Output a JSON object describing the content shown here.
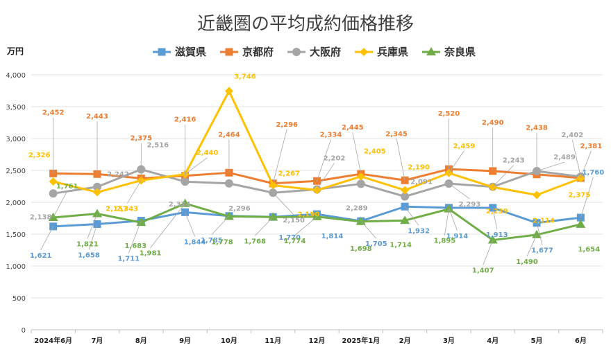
{
  "chart_data": {
    "type": "line",
    "title": "近畿圏の平均成約価格推移",
    "ylabel": "万円",
    "ylim": [
      0,
      4000
    ],
    "yticks": [
      0,
      500,
      1000,
      1500,
      2000,
      2500,
      3000,
      3500,
      4000
    ],
    "ytick_labels": [
      "0",
      "500",
      "1,000",
      "1,500",
      "2,000",
      "2,500",
      "3,000",
      "3,500",
      "4,000"
    ],
    "categories": [
      "2024年6月",
      "7月",
      "8月",
      "9月",
      "10月",
      "11月",
      "12月",
      "2025年1月",
      "2月",
      "3月",
      "4月",
      "5月",
      "6月"
    ],
    "grid": true,
    "legend": "top",
    "series": [
      {
        "name": "滋賀県",
        "color": "#5b9bd5",
        "marker": "square",
        "values": [
          1621,
          1658,
          1711,
          1844,
          1785,
          1770,
          1814,
          1705,
          1932,
          1914,
          1913,
          1677,
          1760
        ]
      },
      {
        "name": "京都府",
        "color": "#ed7d31",
        "marker": "square",
        "values": [
          2452,
          2443,
          2375,
          2416,
          2464,
          2296,
          2334,
          2445,
          2345,
          2520,
          2490,
          2438,
          2381
        ]
      },
      {
        "name": "大阪府",
        "color": "#a5a5a5",
        "marker": "circle",
        "values": [
          2138,
          2242,
          2516,
          2324,
          2296,
          2150,
          2202,
          2289,
          2091,
          2293,
          2243,
          2489,
          2402
        ]
      },
      {
        "name": "兵庫県",
        "color": "#ffc000",
        "marker": "diamond",
        "values": [
          2326,
          2157,
          2343,
          2440,
          3746,
          2267,
          2190,
          2405,
          2190,
          2459,
          2239,
          2114,
          2375
        ]
      },
      {
        "name": "奈良県",
        "color": "#70ad47",
        "marker": "triangle",
        "values": [
          1761,
          1821,
          1683,
          1981,
          1778,
          1768,
          1774,
          1698,
          1714,
          1895,
          1407,
          1490,
          1654
        ]
      }
    ]
  }
}
